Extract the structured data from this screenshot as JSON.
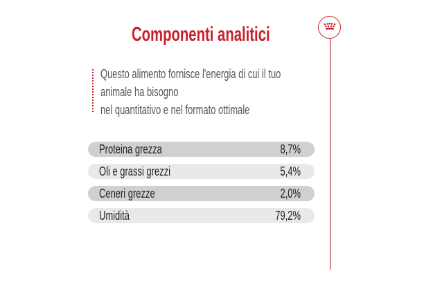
{
  "title": "Componenti analitici",
  "logo_icon": "crown-icon",
  "accent_color": "#c8202a",
  "intro_lines": [
    "Questo alimento fornisce l'energia di cui il tuo",
    "animale ha bisogno",
    "nel quantitativo e nel formato ottimale"
  ],
  "components": [
    {
      "label": "Proteina grezza",
      "value": "8,7%"
    },
    {
      "label": "Oli e grassi grezzi",
      "value": "5,4%"
    },
    {
      "label": "Ceneri grezze",
      "value": "2,0%"
    },
    {
      "label": "Umidità",
      "value": "79,2%"
    }
  ]
}
